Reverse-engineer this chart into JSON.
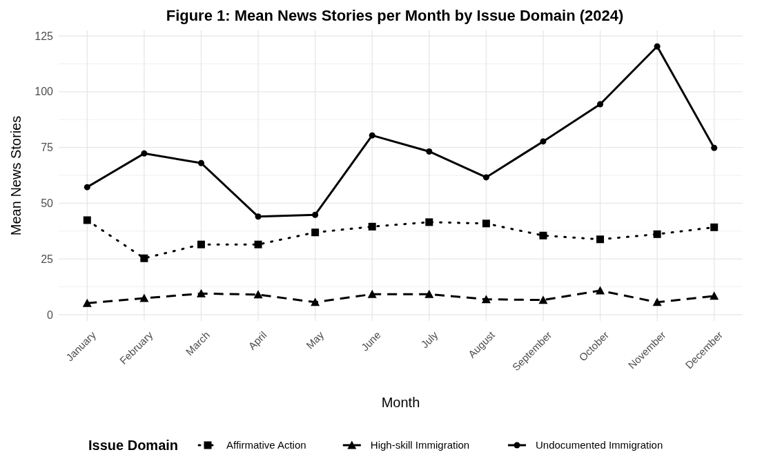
{
  "chart_data": {
    "type": "line",
    "title": "Figure 1: Mean News Stories per Month by Issue Domain (2024)",
    "xlabel": "Month",
    "ylabel": "Mean News Stories",
    "legend_title": "Issue Domain",
    "categories": [
      "January",
      "February",
      "March",
      "April",
      "May",
      "June",
      "July",
      "August",
      "September",
      "October",
      "November",
      "December"
    ],
    "series": [
      {
        "name": "Affirmative Action",
        "color": "#000000",
        "line_style": "dotted",
        "marker": "square",
        "values": [
          42.4,
          25.3,
          31.5,
          31.5,
          36.9,
          39.5,
          41.5,
          40.9,
          35.5,
          33.8,
          36.1,
          39.2
        ]
      },
      {
        "name": "High-skill Immigration",
        "color": "#000000",
        "line_style": "dashed",
        "marker": "triangle",
        "values": [
          5.2,
          7.4,
          9.5,
          9,
          5.6,
          9.2,
          9.2,
          6.9,
          6.6,
          10.8,
          5.6,
          8.4
        ]
      },
      {
        "name": "Undocumented Immigration",
        "color": "#000000",
        "line_style": "solid",
        "marker": "circle",
        "values": [
          57.2,
          72.3,
          68,
          44,
          44.8,
          80.4,
          73.2,
          61.6,
          77.7,
          94.4,
          120.3,
          74.8
        ]
      }
    ],
    "ylim": [
      -2.8,
      127.5
    ],
    "yticks": [
      0,
      25,
      50,
      75,
      100,
      125
    ],
    "grid": true,
    "legend": "bottom"
  }
}
